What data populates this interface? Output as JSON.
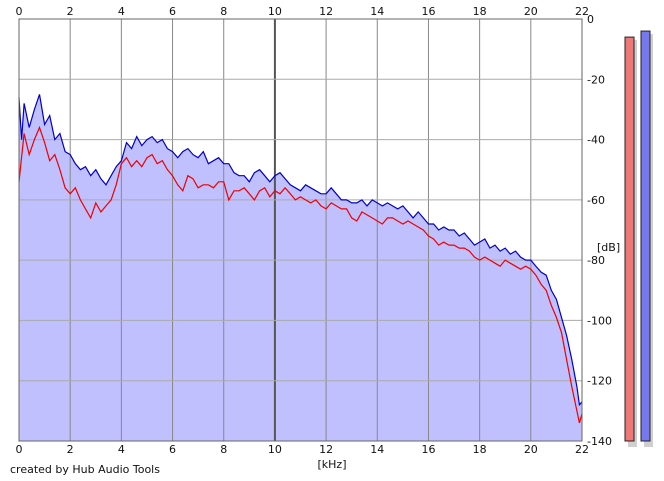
{
  "chart_data": {
    "type": "area",
    "xlabel": "[kHz]",
    "ylabel": "[dB]",
    "xlim": [
      0,
      22
    ],
    "ylim": [
      -140,
      0
    ],
    "x_ticks": [
      0,
      2,
      4,
      6,
      8,
      10,
      12,
      14,
      16,
      18,
      20,
      22
    ],
    "y_ticks": [
      0,
      -20,
      -40,
      -60,
      -80,
      -100,
      -120,
      -140
    ],
    "grid": true,
    "series": [
      {
        "color": "#ee0000",
        "points": [
          [
            0,
            -54
          ],
          [
            0.2,
            -38
          ],
          [
            0.4,
            -45
          ],
          [
            0.6,
            -40
          ],
          [
            0.8,
            -36
          ],
          [
            1.0,
            -41
          ],
          [
            1.2,
            -47
          ],
          [
            1.4,
            -45
          ],
          [
            1.6,
            -50
          ],
          [
            1.8,
            -56
          ],
          [
            2.0,
            -58
          ],
          [
            2.2,
            -56
          ],
          [
            2.4,
            -60
          ],
          [
            2.6,
            -63
          ],
          [
            2.8,
            -66
          ],
          [
            3.0,
            -61
          ],
          [
            3.2,
            -64
          ],
          [
            3.4,
            -62
          ],
          [
            3.6,
            -60
          ],
          [
            3.8,
            -55
          ],
          [
            4.0,
            -48
          ],
          [
            4.2,
            -46
          ],
          [
            4.4,
            -49
          ],
          [
            4.6,
            -47
          ],
          [
            4.8,
            -49
          ],
          [
            5.0,
            -46
          ],
          [
            5.2,
            -45
          ],
          [
            5.4,
            -48
          ],
          [
            5.6,
            -47
          ],
          [
            5.8,
            -50
          ],
          [
            6.0,
            -52
          ],
          [
            6.2,
            -55
          ],
          [
            6.4,
            -57
          ],
          [
            6.6,
            -52
          ],
          [
            6.8,
            -53
          ],
          [
            7.0,
            -56
          ],
          [
            7.2,
            -55
          ],
          [
            7.4,
            -55
          ],
          [
            7.6,
            -56
          ],
          [
            7.8,
            -54
          ],
          [
            8.0,
            -54
          ],
          [
            8.2,
            -60
          ],
          [
            8.4,
            -57
          ],
          [
            8.6,
            -57
          ],
          [
            8.8,
            -56
          ],
          [
            9.0,
            -58
          ],
          [
            9.2,
            -60
          ],
          [
            9.4,
            -57
          ],
          [
            9.6,
            -56
          ],
          [
            9.8,
            -59
          ],
          [
            10.0,
            -57
          ],
          [
            10.2,
            -58
          ],
          [
            10.4,
            -56
          ],
          [
            10.6,
            -58
          ],
          [
            10.8,
            -60
          ],
          [
            11.0,
            -59
          ],
          [
            11.2,
            -60
          ],
          [
            11.4,
            -61
          ],
          [
            11.6,
            -60
          ],
          [
            11.8,
            -62
          ],
          [
            12.0,
            -63
          ],
          [
            12.2,
            -61
          ],
          [
            12.4,
            -62
          ],
          [
            12.6,
            -63
          ],
          [
            12.8,
            -63
          ],
          [
            13.0,
            -66
          ],
          [
            13.2,
            -67
          ],
          [
            13.4,
            -64
          ],
          [
            13.6,
            -65
          ],
          [
            13.8,
            -66
          ],
          [
            14.0,
            -67
          ],
          [
            14.2,
            -68
          ],
          [
            14.4,
            -66
          ],
          [
            14.6,
            -66
          ],
          [
            14.8,
            -67
          ],
          [
            15.0,
            -68
          ],
          [
            15.2,
            -67
          ],
          [
            15.4,
            -68
          ],
          [
            15.6,
            -69
          ],
          [
            15.8,
            -70
          ],
          [
            16.0,
            -72
          ],
          [
            16.2,
            -73
          ],
          [
            16.4,
            -75
          ],
          [
            16.6,
            -74
          ],
          [
            16.8,
            -75
          ],
          [
            17.0,
            -75
          ],
          [
            17.2,
            -76
          ],
          [
            17.4,
            -76
          ],
          [
            17.6,
            -77
          ],
          [
            17.8,
            -79
          ],
          [
            18.0,
            -80
          ],
          [
            18.2,
            -79
          ],
          [
            18.4,
            -80
          ],
          [
            18.6,
            -81
          ],
          [
            18.8,
            -82
          ],
          [
            19.0,
            -80
          ],
          [
            19.2,
            -81
          ],
          [
            19.4,
            -82
          ],
          [
            19.6,
            -83
          ],
          [
            19.8,
            -82
          ],
          [
            20.0,
            -83
          ],
          [
            20.2,
            -85
          ],
          [
            20.4,
            -88
          ],
          [
            20.6,
            -90
          ],
          [
            20.8,
            -95
          ],
          [
            21.0,
            -99
          ],
          [
            21.2,
            -104
          ],
          [
            21.4,
            -113
          ],
          [
            21.6,
            -122
          ],
          [
            21.8,
            -130
          ],
          [
            21.9,
            -134
          ],
          [
            22.0,
            -131
          ]
        ]
      },
      {
        "color": "#0000cc",
        "points": [
          [
            0,
            -26
          ],
          [
            0.1,
            -40
          ],
          [
            0.2,
            -28
          ],
          [
            0.4,
            -36
          ],
          [
            0.6,
            -30
          ],
          [
            0.8,
            -25
          ],
          [
            1.0,
            -35
          ],
          [
            1.2,
            -32
          ],
          [
            1.4,
            -40
          ],
          [
            1.6,
            -38
          ],
          [
            1.8,
            -44
          ],
          [
            2.0,
            -45
          ],
          [
            2.2,
            -48
          ],
          [
            2.4,
            -50
          ],
          [
            2.6,
            -49
          ],
          [
            2.8,
            -52
          ],
          [
            3.0,
            -50
          ],
          [
            3.2,
            -53
          ],
          [
            3.4,
            -55
          ],
          [
            3.6,
            -52
          ],
          [
            3.8,
            -49
          ],
          [
            4.0,
            -47
          ],
          [
            4.2,
            -41
          ],
          [
            4.4,
            -43
          ],
          [
            4.6,
            -39
          ],
          [
            4.8,
            -42
          ],
          [
            5.0,
            -40
          ],
          [
            5.2,
            -39
          ],
          [
            5.4,
            -41
          ],
          [
            5.6,
            -40
          ],
          [
            5.8,
            -43
          ],
          [
            6.0,
            -44
          ],
          [
            6.2,
            -46
          ],
          [
            6.4,
            -44
          ],
          [
            6.6,
            -43
          ],
          [
            6.8,
            -45
          ],
          [
            7.0,
            -46
          ],
          [
            7.2,
            -44
          ],
          [
            7.4,
            -48
          ],
          [
            7.6,
            -47
          ],
          [
            7.8,
            -46
          ],
          [
            8.0,
            -48
          ],
          [
            8.2,
            -48
          ],
          [
            8.4,
            -51
          ],
          [
            8.6,
            -52
          ],
          [
            8.8,
            -52
          ],
          [
            9.0,
            -54
          ],
          [
            9.2,
            -51
          ],
          [
            9.4,
            -50
          ],
          [
            9.6,
            -52
          ],
          [
            9.8,
            -54
          ],
          [
            10.0,
            -52
          ],
          [
            10.2,
            -51
          ],
          [
            10.4,
            -53
          ],
          [
            10.6,
            -55
          ],
          [
            10.8,
            -56
          ],
          [
            11.0,
            -57
          ],
          [
            11.2,
            -55
          ],
          [
            11.4,
            -56
          ],
          [
            11.6,
            -57
          ],
          [
            11.8,
            -58
          ],
          [
            12.0,
            -58
          ],
          [
            12.2,
            -56
          ],
          [
            12.4,
            -58
          ],
          [
            12.6,
            -60
          ],
          [
            12.8,
            -60
          ],
          [
            13.0,
            -61
          ],
          [
            13.2,
            -61
          ],
          [
            13.4,
            -60
          ],
          [
            13.6,
            -62
          ],
          [
            13.8,
            -60
          ],
          [
            14.0,
            -61
          ],
          [
            14.2,
            -62
          ],
          [
            14.4,
            -61
          ],
          [
            14.6,
            -62
          ],
          [
            14.8,
            -63
          ],
          [
            15.0,
            -62
          ],
          [
            15.2,
            -64
          ],
          [
            15.4,
            -66
          ],
          [
            15.6,
            -64
          ],
          [
            15.8,
            -66
          ],
          [
            16.0,
            -68
          ],
          [
            16.2,
            -68
          ],
          [
            16.4,
            -70
          ],
          [
            16.6,
            -69
          ],
          [
            16.8,
            -70
          ],
          [
            17.0,
            -70
          ],
          [
            17.2,
            -72
          ],
          [
            17.4,
            -71
          ],
          [
            17.6,
            -73
          ],
          [
            17.8,
            -75
          ],
          [
            18.0,
            -74
          ],
          [
            18.2,
            -73
          ],
          [
            18.4,
            -76
          ],
          [
            18.6,
            -75
          ],
          [
            18.8,
            -77
          ],
          [
            19.0,
            -76
          ],
          [
            19.2,
            -78
          ],
          [
            19.4,
            -77
          ],
          [
            19.6,
            -79
          ],
          [
            19.8,
            -80
          ],
          [
            20.0,
            -80
          ],
          [
            20.2,
            -82
          ],
          [
            20.4,
            -84
          ],
          [
            20.6,
            -85
          ],
          [
            20.8,
            -90
          ],
          [
            21.0,
            -93
          ],
          [
            21.2,
            -99
          ],
          [
            21.4,
            -105
          ],
          [
            21.6,
            -113
          ],
          [
            21.8,
            -122
          ],
          [
            21.9,
            -128
          ],
          [
            22.0,
            -127
          ]
        ]
      }
    ],
    "fill_color": "#c0c0ff",
    "level_meters": [
      {
        "color": "#ee7777",
        "level_db": -6
      },
      {
        "color": "#7777ee",
        "level_db": -4
      }
    ]
  },
  "footer": {
    "credit": "created by Hub Audio Tools"
  }
}
